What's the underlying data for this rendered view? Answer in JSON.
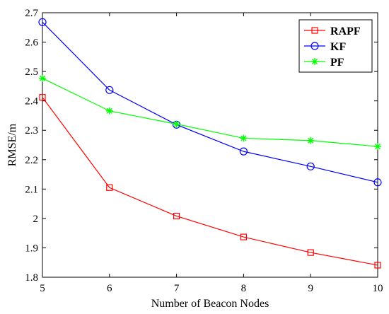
{
  "chart_data": {
    "type": "line",
    "title": "",
    "xlabel": "Number of Beacon Nodes",
    "ylabel": "RMSE/m",
    "x": [
      5,
      6,
      7,
      8,
      9,
      10
    ],
    "xlim": [
      5,
      10
    ],
    "ylim": [
      1.8,
      2.7
    ],
    "xticks": [
      "5",
      "6",
      "7",
      "8",
      "9",
      "10"
    ],
    "yticks": [
      "1.8",
      "1.9",
      "2",
      "2.1",
      "2.2",
      "2.3",
      "2.4",
      "2.5",
      "2.6",
      "2.7"
    ],
    "grid": false,
    "legend_position": "top-right",
    "series": [
      {
        "name": "RAPF",
        "color": "#ff0000",
        "marker": "square",
        "values": [
          2.412,
          2.105,
          2.008,
          1.937,
          1.884,
          1.841
        ]
      },
      {
        "name": "KF",
        "color": "#0000ff",
        "marker": "circle",
        "values": [
          2.668,
          2.437,
          2.319,
          2.228,
          2.177,
          2.123
        ]
      },
      {
        "name": "PF",
        "color": "#00ff00",
        "marker": "star",
        "values": [
          2.477,
          2.366,
          2.321,
          2.273,
          2.265,
          2.245
        ]
      }
    ]
  }
}
